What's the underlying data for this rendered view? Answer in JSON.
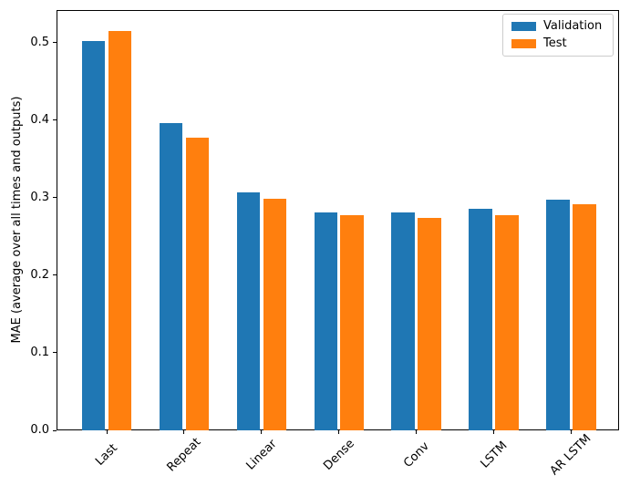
{
  "chart_data": {
    "type": "bar",
    "title": "",
    "categories": [
      "Last",
      "Repeat",
      "Linear",
      "Dense",
      "Conv",
      "LSTM",
      "AR LSTM"
    ],
    "series": [
      {
        "name": "Validation",
        "color": "#1f77b4",
        "values": [
          0.502,
          0.396,
          0.307,
          0.281,
          0.281,
          0.286,
          0.298
        ]
      },
      {
        "name": "Test",
        "color": "#ff7f0e",
        "values": [
          0.515,
          0.378,
          0.299,
          0.277,
          0.274,
          0.277,
          0.292
        ]
      }
    ],
    "xlabel": "",
    "ylabel": "MAE (average over all times and outputs)",
    "ylim": [
      0,
      0.542
    ],
    "yticks": [
      0.0,
      0.1,
      0.2,
      0.3,
      0.4,
      0.5
    ],
    "ytick_labels": [
      "0.0",
      "0.1",
      "0.2",
      "0.3",
      "0.4",
      "0.5"
    ],
    "xtick_rotation": 45,
    "grid": false,
    "legend_position": "upper right",
    "bar_width_units": 0.3,
    "bar_offset_units": 0.17,
    "axis_color": "#000000",
    "legend_border_color": "#cccccc",
    "background_color": "#ffffff"
  }
}
